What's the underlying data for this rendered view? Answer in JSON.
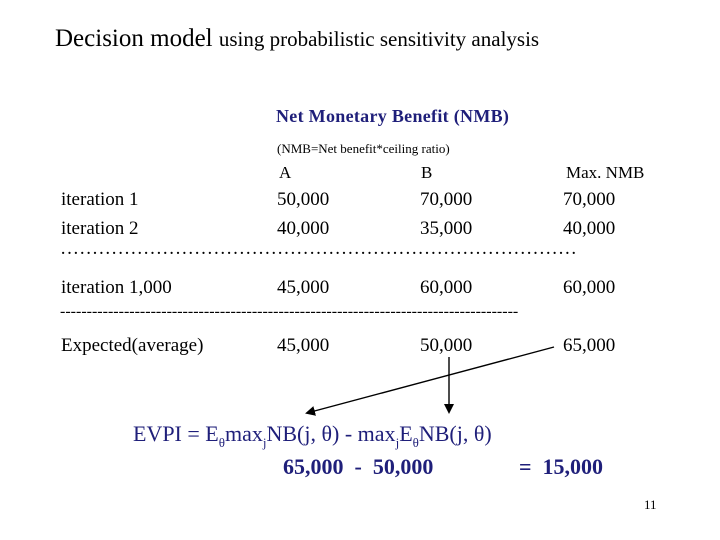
{
  "title": {
    "main": "Decision model",
    "sub": "using probabilistic sensitivity analysis"
  },
  "table": {
    "heading": "Net Monetary Benefit (NMB)",
    "note": "(NMB=Net benefit*ceiling ratio)",
    "columns": {
      "a": "A",
      "b": "B",
      "max": "Max. NMB"
    },
    "rows": [
      {
        "label": "iteration 1",
        "a": "50,000",
        "b": "70,000",
        "max": "70,000"
      },
      {
        "label": "iteration 2",
        "a": "40,000",
        "b": "35,000",
        "max": "40,000"
      },
      {
        "label": "iteration 1,000",
        "a": "45,000",
        "b": "60,000",
        "max": "60,000"
      }
    ],
    "dotted_separator": "………………………………………………………………………",
    "dashed_separator": "--------------------------------------------------------------------------------------",
    "expected": {
      "label": "Expected(average)",
      "a": "45,000",
      "b": "50,000",
      "max": "65,000"
    }
  },
  "evpi": {
    "p1": "EVPI = E",
    "s1": "θ",
    "p2": "max",
    "s2": "j",
    "p3": "NB(j, θ) - max",
    "s3": "j",
    "p4": "E",
    "s4": "θ",
    "p5": "NB(j, θ)",
    "calc_left": "65,000  -  50,000",
    "calc_right": "=  15,000"
  },
  "page_number": "11"
}
